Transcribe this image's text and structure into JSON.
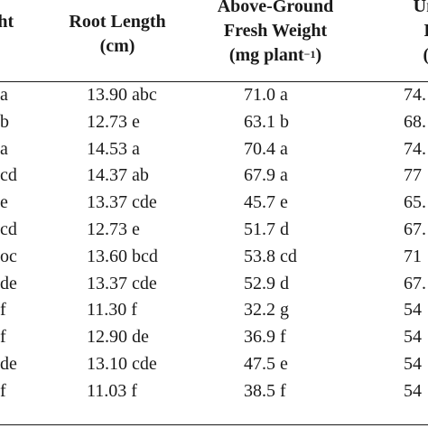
{
  "headers": {
    "col1": "eight",
    "col1_sub": "",
    "col2_line1": "Root Length",
    "col2_line2": "(cm)",
    "col3_line1": "Above-Ground",
    "col3_line2": "Fresh Weight",
    "col3_line3": "(mg plant",
    "col3_sup": "−1",
    "col3_close": ")",
    "col4_line1": "Under-",
    "col4_line2": "Fresh",
    "col4_line3": "(mg p"
  },
  "rows": [
    {
      "c1": "a",
      "c2": "13.90 abc",
      "c3": "71.0 a",
      "c4": "74."
    },
    {
      "c1": "b",
      "c2": "12.73 e",
      "c3": "63.1 b",
      "c4": "68."
    },
    {
      "c1": "a",
      "c2": "14.53 a",
      "c3": "70.4 a",
      "c4": "74."
    },
    {
      "c1": "cd",
      "c2": "14.37 ab",
      "c3": "67.9 a",
      "c4": "77"
    },
    {
      "c1": "e",
      "c2": "13.37 cde",
      "c3": "45.7 e",
      "c4": "65."
    },
    {
      "c1": "cd",
      "c2": "12.73 e",
      "c3": "51.7 d",
      "c4": "67."
    },
    {
      "c1": "oc",
      "c2": "13.60 bcd",
      "c3": "53.8 cd",
      "c4": "71"
    },
    {
      "c1": "de",
      "c2": "13.37 cde",
      "c3": "52.9 d",
      "c4": "67."
    },
    {
      "c1": "f",
      "c2": "11.30 f",
      "c3": "32.2 g",
      "c4": "54"
    },
    {
      "c1": "f",
      "c2": "12.90 de",
      "c3": "36.9 f",
      "c4": "54"
    },
    {
      "c1": "de",
      "c2": "13.10 cde",
      "c3": "47.5 e",
      "c4": "54"
    },
    {
      "c1": "f",
      "c2": "11.03 f",
      "c3": "38.5 f",
      "c4": "54"
    }
  ]
}
